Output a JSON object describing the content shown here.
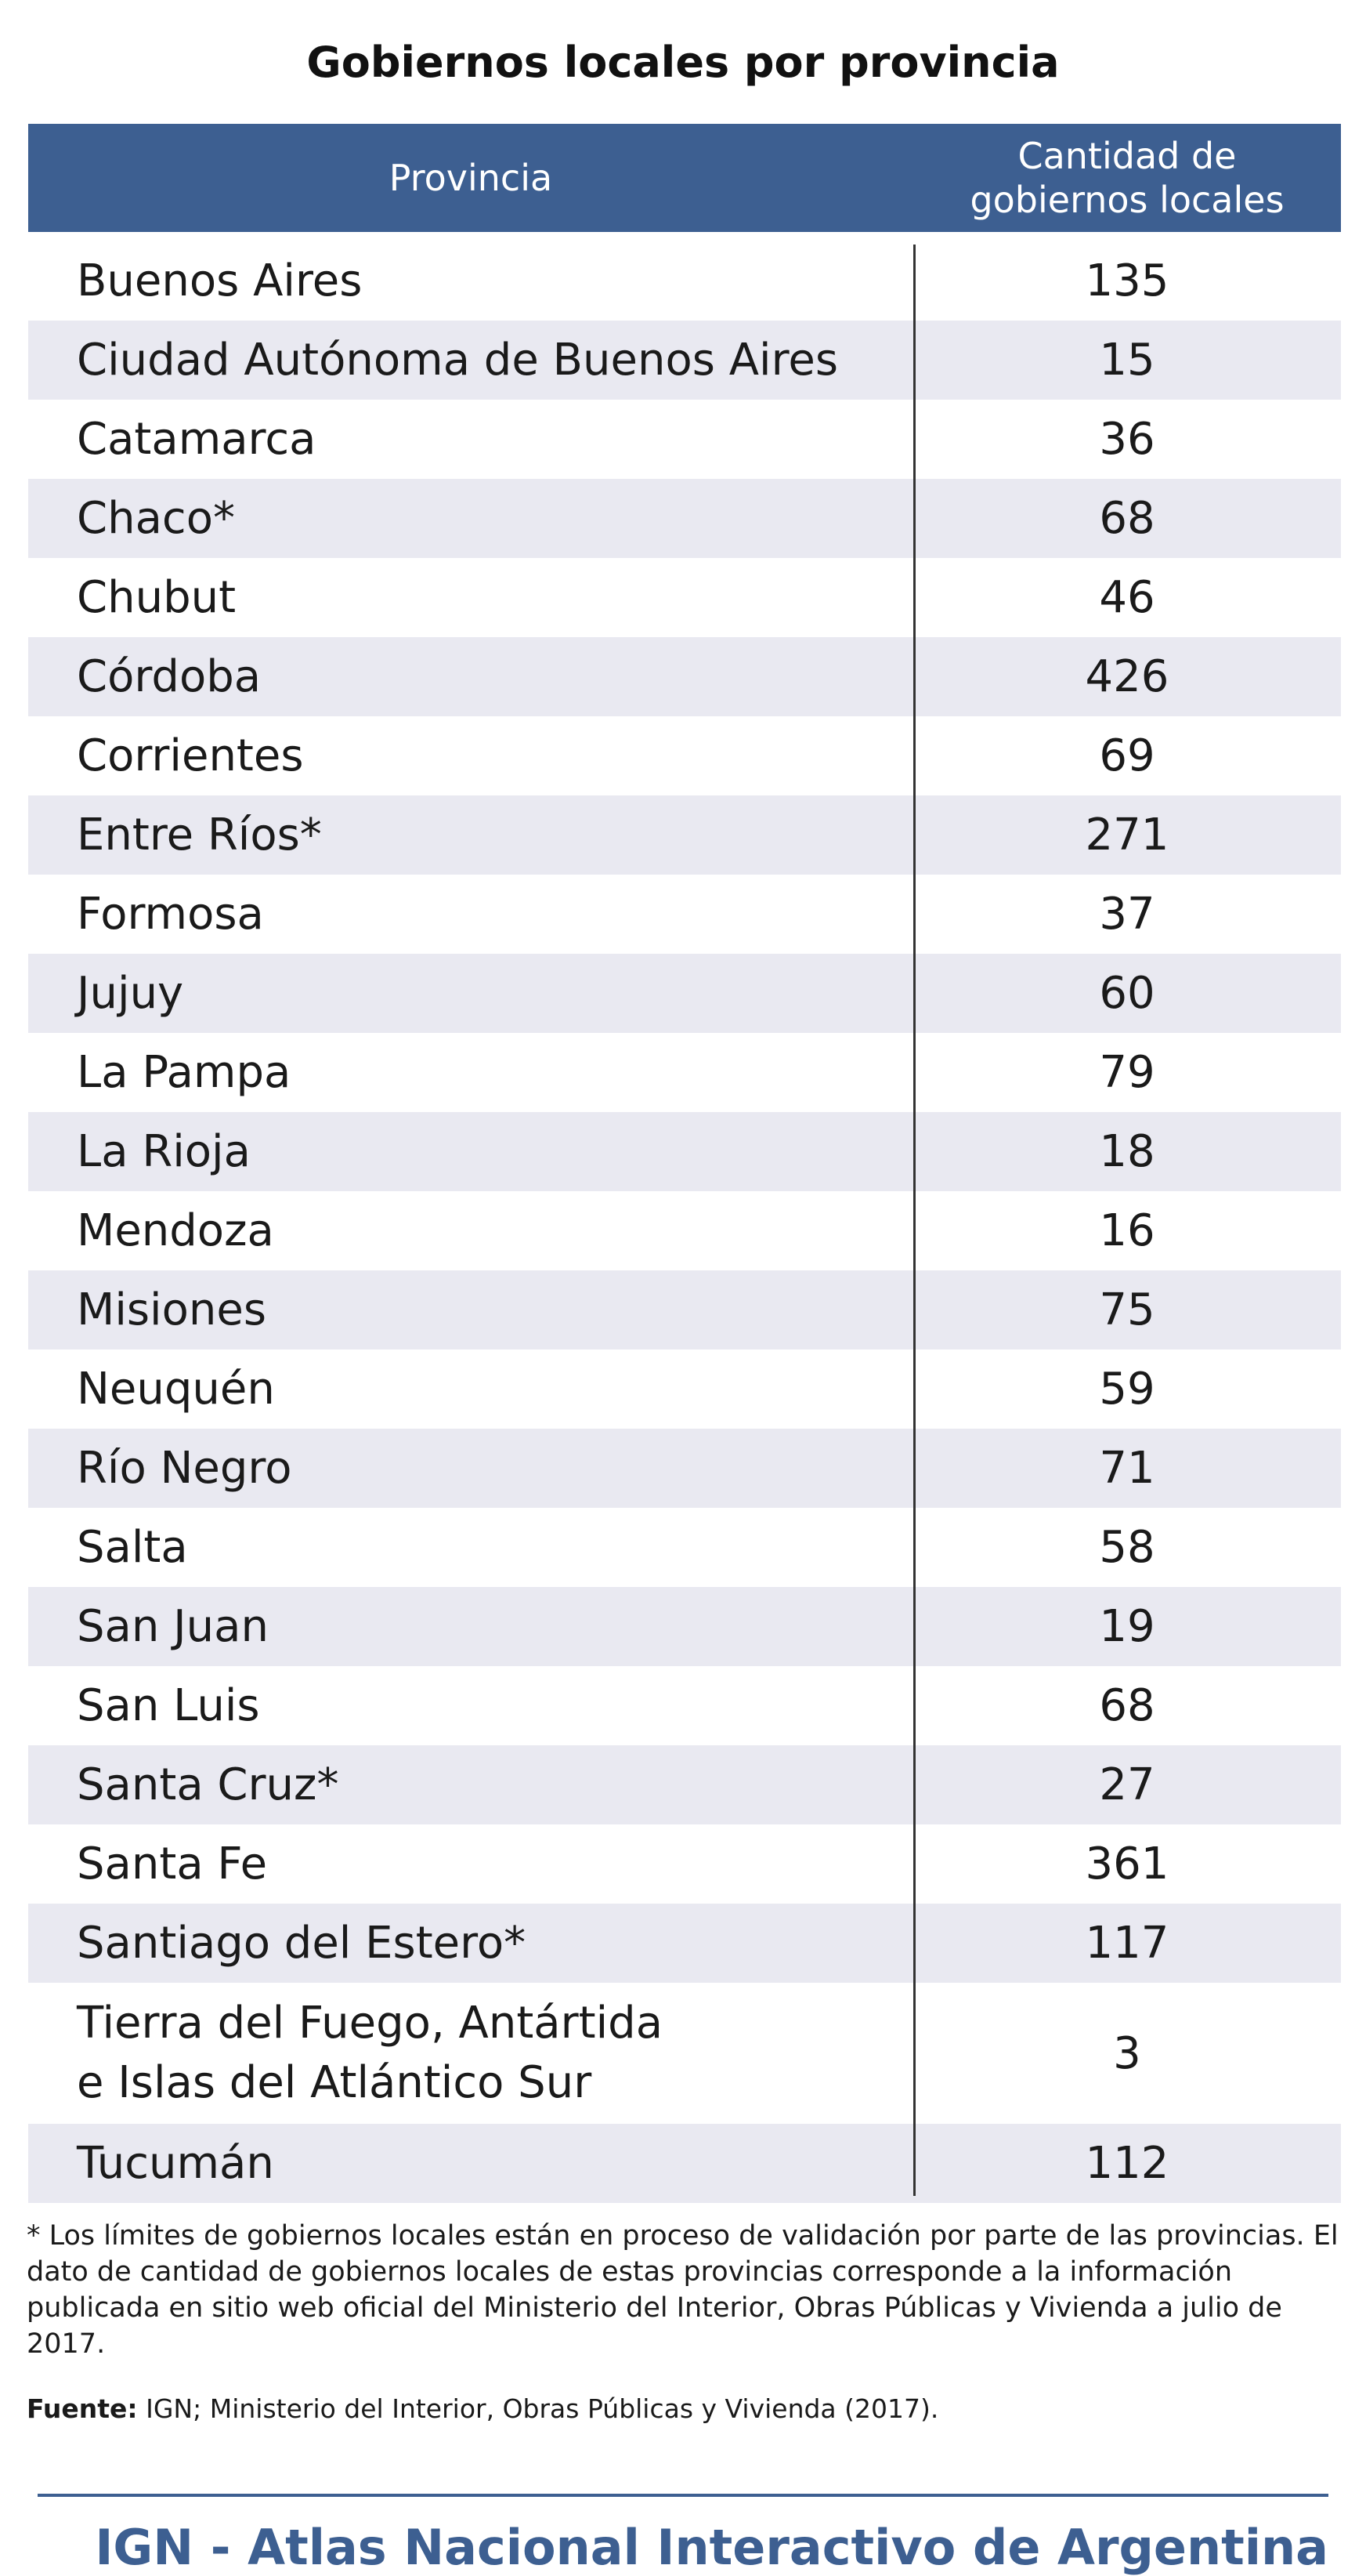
{
  "title": "Gobiernos locales por provincia",
  "table": {
    "headers": {
      "province": "Provincia",
      "count": "Cantidad de\ngobiernos locales"
    },
    "rows": [
      {
        "province": "Buenos Aires",
        "count": "135"
      },
      {
        "province": "Ciudad Autónoma de Buenos Aires",
        "count": "15"
      },
      {
        "province": "Catamarca",
        "count": "36"
      },
      {
        "province": "Chaco*",
        "count": "68"
      },
      {
        "province": "Chubut",
        "count": "46"
      },
      {
        "province": "Córdoba",
        "count": "426"
      },
      {
        "province": "Corrientes",
        "count": "69"
      },
      {
        "province": "Entre Ríos*",
        "count": "271"
      },
      {
        "province": "Formosa",
        "count": "37"
      },
      {
        "province": "Jujuy",
        "count": "60"
      },
      {
        "province": "La Pampa",
        "count": "79"
      },
      {
        "province": "La Rioja",
        "count": "18"
      },
      {
        "province": "Mendoza",
        "count": "16"
      },
      {
        "province": "Misiones",
        "count": "75"
      },
      {
        "province": "Neuquén",
        "count": "59"
      },
      {
        "province": "Río Negro",
        "count": "71"
      },
      {
        "province": "Salta",
        "count": "58"
      },
      {
        "province": "San Juan",
        "count": "19"
      },
      {
        "province": "San Luis",
        "count": "68"
      },
      {
        "province": "Santa Cruz*",
        "count": "27"
      },
      {
        "province": "Santa Fe",
        "count": "361"
      },
      {
        "province": "Santiago del Estero*",
        "count": "117"
      },
      {
        "province": "Tierra del Fuego, Antártida\ne Islas del Atlántico Sur",
        "count": "3"
      },
      {
        "province": "Tucumán",
        "count": "112"
      }
    ]
  },
  "footnote": "* Los límites de gobiernos locales están en proceso de validación por parte de las provincias. El dato de cantidad de gobiernos locales de estas provincias corresponde a la información publicada en sitio web oficial del Ministerio del Interior, Obras Públicas y Vivienda a julio de 2017.",
  "source": {
    "label": "Fuente:",
    "text": "IGN; Ministerio del Interior, Obras Públicas y Vivienda (2017)."
  },
  "branding": "IGN - Atlas Nacional Interactivo de Argentina",
  "colors": {
    "header_bg": "#3d5f91",
    "row_shade": "#e9e9f1",
    "brand": "#3d5f91"
  }
}
